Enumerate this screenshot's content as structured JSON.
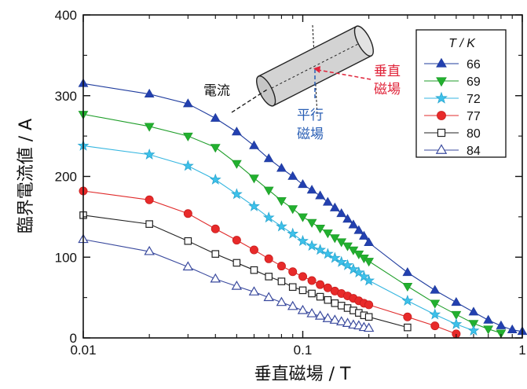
{
  "chart_data": {
    "type": "line",
    "title": "",
    "xlabel": "垂直磁場 / T",
    "ylabel": "臨界電流値 / A",
    "xscale": "log",
    "xlim": [
      0.01,
      1
    ],
    "ylim": [
      0,
      400
    ],
    "x_ticks": [
      0.01,
      0.1,
      1
    ],
    "x_tick_labels": [
      "0.01",
      "0.1",
      "1"
    ],
    "y_ticks": [
      0,
      100,
      200,
      300,
      400
    ],
    "y_tick_labels": [
      "0",
      "100",
      "200",
      "300",
      "400"
    ],
    "grid": false,
    "legend": {
      "title": "T / K",
      "placement": "top-right"
    },
    "series": [
      {
        "name": "66",
        "marker": "triangle-up-filled",
        "color": "#1f3c9e",
        "x": [
          0.01,
          0.02,
          0.03,
          0.04,
          0.05,
          0.06,
          0.07,
          0.08,
          0.09,
          0.1,
          0.11,
          0.12,
          0.13,
          0.14,
          0.15,
          0.16,
          0.17,
          0.18,
          0.19,
          0.2,
          0.3,
          0.4,
          0.5,
          0.6,
          0.7,
          0.8,
          0.9,
          1.0
        ],
        "y": [
          315,
          302,
          290,
          272,
          255,
          238,
          222,
          210,
          200,
          190,
          183,
          176,
          168,
          161,
          154,
          147,
          140,
          133,
          126,
          118,
          81,
          59,
          44,
          32,
          22,
          15,
          10,
          8
        ]
      },
      {
        "name": "69",
        "marker": "triangle-down-filled",
        "color": "#1f9e2a",
        "x": [
          0.01,
          0.02,
          0.03,
          0.04,
          0.05,
          0.06,
          0.07,
          0.08,
          0.09,
          0.1,
          0.11,
          0.12,
          0.13,
          0.14,
          0.15,
          0.16,
          0.17,
          0.18,
          0.19,
          0.2,
          0.3,
          0.4,
          0.5,
          0.6,
          0.7,
          0.8
        ],
        "y": [
          277,
          262,
          250,
          236,
          216,
          198,
          183,
          170,
          160,
          150,
          143,
          136,
          130,
          124,
          119,
          114,
          109,
          104,
          99,
          95,
          64,
          43,
          29,
          18,
          11,
          6
        ]
      },
      {
        "name": "72",
        "marker": "star-filled",
        "color": "#35b6e0",
        "x": [
          0.01,
          0.02,
          0.03,
          0.04,
          0.05,
          0.06,
          0.07,
          0.08,
          0.09,
          0.1,
          0.11,
          0.12,
          0.13,
          0.14,
          0.15,
          0.16,
          0.17,
          0.18,
          0.19,
          0.2,
          0.3,
          0.4,
          0.5,
          0.6
        ],
        "y": [
          238,
          227,
          213,
          196,
          178,
          163,
          149,
          138,
          129,
          120,
          114,
          109,
          104,
          99,
          94,
          90,
          85,
          81,
          76,
          71,
          46,
          29,
          17,
          9
        ]
      },
      {
        "name": "77",
        "marker": "circle-filled",
        "color": "#e02b2b",
        "x": [
          0.01,
          0.02,
          0.03,
          0.04,
          0.05,
          0.06,
          0.07,
          0.08,
          0.09,
          0.1,
          0.11,
          0.12,
          0.13,
          0.14,
          0.15,
          0.16,
          0.17,
          0.18,
          0.19,
          0.2,
          0.3,
          0.4,
          0.5
        ],
        "y": [
          182,
          171,
          154,
          135,
          121,
          109,
          98,
          89,
          82,
          76,
          71,
          66,
          62,
          58,
          55,
          52,
          49,
          46,
          43,
          41,
          26,
          15,
          5
        ]
      },
      {
        "name": "80",
        "marker": "square-open",
        "color": "#222222",
        "x": [
          0.01,
          0.02,
          0.03,
          0.04,
          0.05,
          0.06,
          0.07,
          0.08,
          0.09,
          0.1,
          0.11,
          0.12,
          0.13,
          0.14,
          0.15,
          0.16,
          0.17,
          0.18,
          0.19,
          0.2,
          0.3
        ],
        "y": [
          152,
          141,
          120,
          104,
          93,
          84,
          76,
          70,
          63,
          59,
          55,
          51,
          47,
          43,
          40,
          37,
          34,
          31,
          28,
          26,
          13
        ]
      },
      {
        "name": "84",
        "marker": "triangle-up-open",
        "color": "#3a4a9e",
        "x": [
          0.01,
          0.02,
          0.03,
          0.04,
          0.05,
          0.06,
          0.07,
          0.08,
          0.09,
          0.1,
          0.11,
          0.12,
          0.13,
          0.14,
          0.15,
          0.16,
          0.17,
          0.18,
          0.19,
          0.2
        ],
        "y": [
          122,
          107,
          88,
          73,
          64,
          57,
          50,
          44,
          39,
          34,
          30,
          27,
          24,
          22,
          20,
          18,
          16,
          15,
          13,
          12
        ]
      }
    ],
    "annotations": {
      "current": "電流",
      "perpendicular_field": [
        "垂直",
        "磁場"
      ],
      "parallel_field": [
        "平行",
        "磁場"
      ],
      "perpendicular_color": "#e0243a",
      "parallel_color": "#2a5fb5"
    }
  }
}
